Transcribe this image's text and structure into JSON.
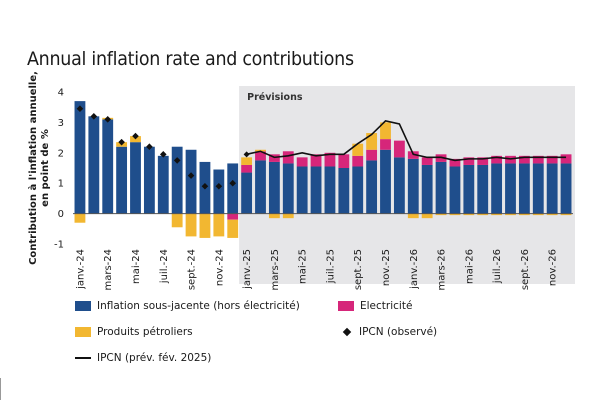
{
  "chart_data": {
    "type": "bar",
    "stacked": true,
    "title": "Annual inflation rate and contributions",
    "ylabel": "Contribution à l'inflation annuelle,\nen point de %",
    "ylim": [
      -1,
      4
    ],
    "yticks": [
      4,
      3,
      2,
      1,
      0,
      -1
    ],
    "grid": false,
    "forecast_label": "Prévisions",
    "forecast_start": "janv.-25",
    "categories": [
      "janv.-24",
      "févr.-24",
      "mars-24",
      "avr.-24",
      "mai-24",
      "juin-24",
      "juil.-24",
      "août-24",
      "sept.-24",
      "oct.-24",
      "nov.-24",
      "déc.-24",
      "janv.-25",
      "févr.-25",
      "mars-25",
      "avr.-25",
      "mai-25",
      "juin-25",
      "juil.-25",
      "août-25",
      "sept.-25",
      "oct.-25",
      "nov.-25",
      "déc.-25",
      "janv.-26",
      "févr.-26",
      "mars-26",
      "avr.-26",
      "mai-26",
      "juin-26",
      "juil.-26",
      "août-26",
      "sept.-26",
      "oct.-26",
      "nov.-26",
      "déc.-26"
    ],
    "xticklabels": [
      "janv.-24",
      "mars-24",
      "mai-24",
      "juil.-24",
      "sept.-24",
      "nov.-24",
      "janv.-25",
      "mars-25",
      "mai-25",
      "juil.-25",
      "sept.-25",
      "nov.-25",
      "janv.-26",
      "mars-26",
      "mai-26",
      "juil.-26",
      "sept.-26",
      "nov.-26"
    ],
    "series": [
      {
        "name": "Inflation sous-jacente (hors électricité)",
        "color": "#1f4e8c",
        "values": [
          3.7,
          3.2,
          3.1,
          2.2,
          2.35,
          2.2,
          1.9,
          2.2,
          2.1,
          1.7,
          1.45,
          1.65,
          1.35,
          1.75,
          1.7,
          1.65,
          1.55,
          1.55,
          1.55,
          1.5,
          1.55,
          1.75,
          2.1,
          1.85,
          1.8,
          1.6,
          1.7,
          1.55,
          1.6,
          1.6,
          1.65,
          1.65,
          1.65,
          1.65,
          1.65,
          1.65
        ]
      },
      {
        "name": "Electricité",
        "color": "#d6267a",
        "values": [
          0,
          0,
          0,
          0,
          0,
          0,
          0,
          0,
          0,
          0,
          0,
          -0.2,
          0.25,
          0.3,
          0.25,
          0.4,
          0.3,
          0.4,
          0.45,
          0.45,
          0.35,
          0.35,
          0.35,
          0.55,
          0.25,
          0.25,
          0.25,
          0.25,
          0.25,
          0.25,
          0.25,
          0.25,
          0.25,
          0.25,
          0.25,
          0.3
        ]
      },
      {
        "name": "Produits pétroliers",
        "color": "#f2b731",
        "values": [
          -0.3,
          0,
          0.05,
          0.15,
          0.2,
          0,
          0,
          -0.45,
          -0.75,
          -0.8,
          -0.75,
          -0.6,
          0.25,
          0.05,
          -0.15,
          -0.15,
          0,
          0,
          0,
          0,
          0.4,
          0.55,
          0.55,
          0,
          -0.15,
          -0.15,
          -0.05,
          -0.05,
          -0.05,
          -0.05,
          -0.05,
          -0.05,
          -0.05,
          -0.05,
          -0.05,
          -0.05
        ]
      }
    ],
    "ipcn_observed": {
      "name": "IPCN (observé)",
      "color": "#111111",
      "values": [
        3.45,
        3.2,
        3.1,
        2.35,
        2.55,
        2.2,
        1.95,
        1.75,
        1.25,
        0.9,
        0.9,
        1.0
      ]
    },
    "ipcn_forecast": {
      "name": "IPCN (prév. fév. 2025)",
      "color": "#111111",
      "values": [
        1.95,
        2.05,
        1.85,
        1.9,
        2.0,
        1.9,
        1.95,
        1.95,
        2.3,
        2.6,
        3.05,
        2.95,
        1.95,
        1.85,
        1.85,
        1.75,
        1.8,
        1.8,
        1.85,
        1.8,
        1.85,
        1.85,
        1.85,
        1.85
      ]
    }
  }
}
